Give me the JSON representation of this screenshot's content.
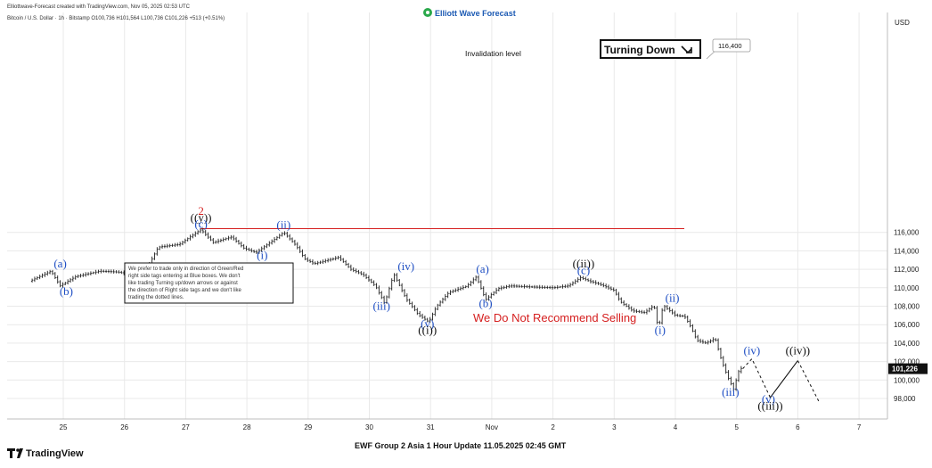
{
  "header": {
    "credit": "Elliottwave-Forecast created with TradingView.com, Nov 05, 2025 02:53 UTC",
    "symbol_line": "Bitcoin / U.S. Dollar · 1h · Bitstamp  O100,736  H101,564  L100,736  C101,226  +513 (+0.51%)",
    "brand": "Elliott Wave Forecast"
  },
  "axis": {
    "currency": "USD",
    "current_price": "101,226",
    "invalidation_price_label": "116,400"
  },
  "annotations": {
    "invalidation": "Invalidation level",
    "turning": "Turning Down",
    "not_recommend": "We Do Not Recommend Selling",
    "note": [
      "We prefer to trade only in direction of Green/Red",
      "right side tags entering at Blue boxes. We don't",
      "like trading Turning up/down arrows or against",
      "the direction of Right side tags and we don't like",
      "trading the dotted lines."
    ]
  },
  "footer": {
    "title": "EWF Group 2 Asia 1 Hour Update 11.05.2025 02:45 GMT",
    "logo": "TradingView"
  },
  "colors": {
    "blue": "#1f4fc4",
    "red": "#d51f1f",
    "black": "#111111",
    "grid": "#e9e9e9"
  },
  "chart_data": {
    "type": "line",
    "title": "Bitcoin / U.S. Dollar · 1h · Bitstamp",
    "ylabel": "USD",
    "ylim": [
      96400,
      117000
    ],
    "grid": true,
    "y_ticks": [
      98000,
      100000,
      102000,
      104000,
      106000,
      108000,
      110000,
      112000,
      114000,
      116000
    ],
    "x_ticks": [
      {
        "label": "25",
        "day": 25
      },
      {
        "label": "26",
        "day": 26
      },
      {
        "label": "27",
        "day": 27
      },
      {
        "label": "28",
        "day": 28
      },
      {
        "label": "29",
        "day": 29
      },
      {
        "label": "30",
        "day": 30
      },
      {
        "label": "31",
        "day": 31
      },
      {
        "label": "Nov",
        "day": 32
      },
      {
        "label": "2",
        "day": 33
      },
      {
        "label": "3",
        "day": 34
      },
      {
        "label": "4",
        "day": 35
      },
      {
        "label": "5",
        "day": 36
      },
      {
        "label": "6",
        "day": 37
      },
      {
        "label": "7",
        "day": 38
      }
    ],
    "price_path": [
      [
        24.45,
        110700
      ],
      [
        24.8,
        111800
      ],
      [
        24.95,
        110200
      ],
      [
        25.2,
        111200
      ],
      [
        25.6,
        111800
      ],
      [
        25.9,
        111700
      ],
      [
        26.1,
        111400
      ],
      [
        26.4,
        112500
      ],
      [
        26.55,
        114400
      ],
      [
        26.9,
        114700
      ],
      [
        27.05,
        115400
      ],
      [
        27.25,
        116300
      ],
      [
        27.45,
        114900
      ],
      [
        27.75,
        115500
      ],
      [
        27.95,
        114300
      ],
      [
        28.15,
        113800
      ],
      [
        28.4,
        115000
      ],
      [
        28.6,
        116000
      ],
      [
        28.8,
        114600
      ],
      [
        28.95,
        113100
      ],
      [
        29.1,
        112600
      ],
      [
        29.5,
        113300
      ],
      [
        29.7,
        112000
      ],
      [
        29.9,
        111400
      ],
      [
        30.1,
        110200
      ],
      [
        30.25,
        108300
      ],
      [
        30.4,
        111500
      ],
      [
        30.6,
        108800
      ],
      [
        30.8,
        107100
      ],
      [
        30.97,
        106300
      ],
      [
        31.1,
        108000
      ],
      [
        31.3,
        109500
      ],
      [
        31.6,
        110200
      ],
      [
        31.75,
        111200
      ],
      [
        31.9,
        108700
      ],
      [
        32.1,
        109900
      ],
      [
        32.3,
        110200
      ],
      [
        32.6,
        110100
      ],
      [
        33.0,
        110000
      ],
      [
        33.25,
        110200
      ],
      [
        33.45,
        111100
      ],
      [
        33.6,
        110700
      ],
      [
        33.8,
        110300
      ],
      [
        34.0,
        109700
      ],
      [
        34.1,
        108500
      ],
      [
        34.3,
        107500
      ],
      [
        34.5,
        107300
      ],
      [
        34.65,
        108100
      ],
      [
        34.72,
        105500
      ],
      [
        34.8,
        108100
      ],
      [
        35.0,
        107000
      ],
      [
        35.15,
        106900
      ],
      [
        35.25,
        105800
      ],
      [
        35.35,
        104300
      ],
      [
        35.5,
        104000
      ],
      [
        35.65,
        104500
      ],
      [
        35.75,
        102200
      ],
      [
        35.85,
        100400
      ],
      [
        35.95,
        99000
      ],
      [
        36.05,
        101300
      ],
      [
        36.1,
        101226
      ]
    ],
    "projection": [
      [
        36.1,
        101226
      ],
      [
        36.25,
        102300
      ],
      [
        36.55,
        98100
      ],
      [
        37.0,
        102100
      ],
      [
        37.35,
        97600
      ]
    ],
    "invalidation": {
      "value": 116400,
      "from_day": 27.25,
      "to_day": 35.0
    },
    "wave_labels": [
      {
        "text": "(a)",
        "day": 24.95,
        "price": 112200,
        "color": "blue"
      },
      {
        "text": "(b)",
        "day": 25.05,
        "price": 109200,
        "color": "blue"
      },
      {
        "text": "2",
        "day": 27.25,
        "price": 117900,
        "color": "red"
      },
      {
        "text": "((y))",
        "day": 27.25,
        "price": 117200,
        "color": "black"
      },
      {
        "text": "(c)",
        "day": 27.25,
        "price": 116500,
        "color": "blue"
      },
      {
        "text": "(ii)",
        "day": 28.6,
        "price": 116400,
        "color": "blue"
      },
      {
        "text": "(i)",
        "day": 28.25,
        "price": 113100,
        "color": "blue"
      },
      {
        "text": "(iv)",
        "day": 30.6,
        "price": 111900,
        "color": "blue"
      },
      {
        "text": "(iii)",
        "day": 30.2,
        "price": 107600,
        "color": "blue"
      },
      {
        "text": "(v)",
        "day": 30.95,
        "price": 105700,
        "color": "blue"
      },
      {
        "text": "((i))",
        "day": 30.95,
        "price": 105000,
        "color": "black"
      },
      {
        "text": "(a)",
        "day": 31.85,
        "price": 111600,
        "color": "blue"
      },
      {
        "text": "(b)",
        "day": 31.9,
        "price": 107900,
        "color": "blue"
      },
      {
        "text": "((ii))",
        "day": 33.5,
        "price": 112200,
        "color": "black"
      },
      {
        "text": "(c)",
        "day": 33.5,
        "price": 111500,
        "color": "blue"
      },
      {
        "text": "(ii)",
        "day": 34.95,
        "price": 108500,
        "color": "blue"
      },
      {
        "text": "(i)",
        "day": 34.75,
        "price": 105000,
        "color": "blue"
      },
      {
        "text": "(iii)",
        "day": 35.9,
        "price": 98300,
        "color": "blue"
      },
      {
        "text": "(iv)",
        "day": 36.25,
        "price": 102800,
        "color": "blue"
      },
      {
        "text": "(v)",
        "day": 36.52,
        "price": 97500,
        "color": "blue"
      },
      {
        "text": "((iii))",
        "day": 36.55,
        "price": 96800,
        "color": "black"
      },
      {
        "text": "((iv))",
        "day": 37.0,
        "price": 102800,
        "color": "black"
      }
    ]
  }
}
